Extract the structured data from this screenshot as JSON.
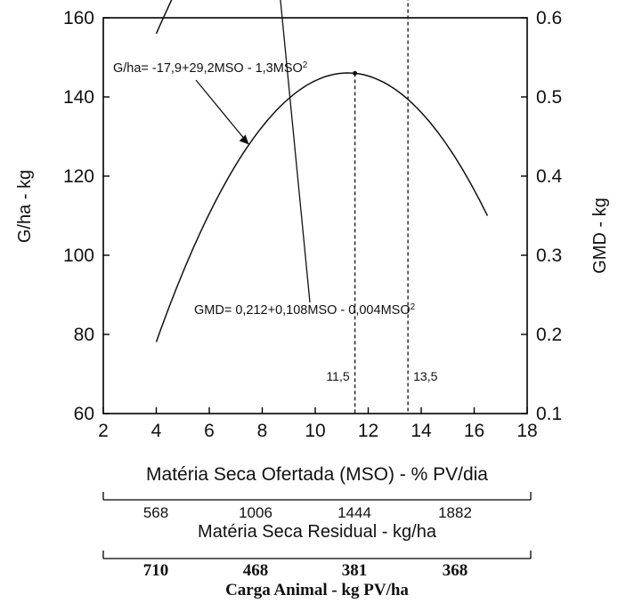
{
  "chart_data": {
    "type": "line",
    "xlabel": "Matéria Seca Ofertada (MSO) - % PV/dia",
    "ylabel_left": "G/ha - kg",
    "ylabel_right": "GMD - kg",
    "xlim": [
      2,
      18
    ],
    "ylim_left": [
      60,
      160
    ],
    "ylim_right": [
      0.1,
      0.6
    ],
    "x_ticks": [
      2,
      4,
      6,
      8,
      10,
      12,
      14,
      16,
      18
    ],
    "y_left_ticks": [
      60,
      80,
      100,
      120,
      140,
      160
    ],
    "y_right_ticks": [
      "0.1",
      "0.2",
      "0.3",
      "0.4",
      "0.5",
      "0.6"
    ],
    "grid": false,
    "series": [
      {
        "name": "G/ha",
        "axis": "left",
        "equation": {
          "a": -17.9,
          "b": 29.2,
          "c": -1.3
        },
        "x_range": [
          4,
          16.5
        ],
        "label_prefix": "G/ha= -17,9+29,2MSO - 1,3MSO",
        "label_exp": "2",
        "optimum_x": 11.5,
        "optimum_label": "11,5"
      },
      {
        "name": "GMD",
        "axis": "right",
        "equation": {
          "a": 0.212,
          "b": 0.108,
          "c": -0.004
        },
        "x_range": [
          4,
          17
        ],
        "label_prefix": "GMD= 0,212+0,108MSO - 0,004MSO",
        "label_exp": "2",
        "optimum_x": 13.5,
        "optimum_label": "13,5"
      }
    ],
    "secondary_axes": [
      {
        "label": "Matéria Seca Residual - kg/ha",
        "ticks": [
          "568",
          "1006",
          "1444",
          "1882"
        ]
      },
      {
        "label": "Carga Animal - kg PV/ha",
        "ticks": [
          "710",
          "468",
          "381",
          "368"
        ]
      }
    ]
  }
}
